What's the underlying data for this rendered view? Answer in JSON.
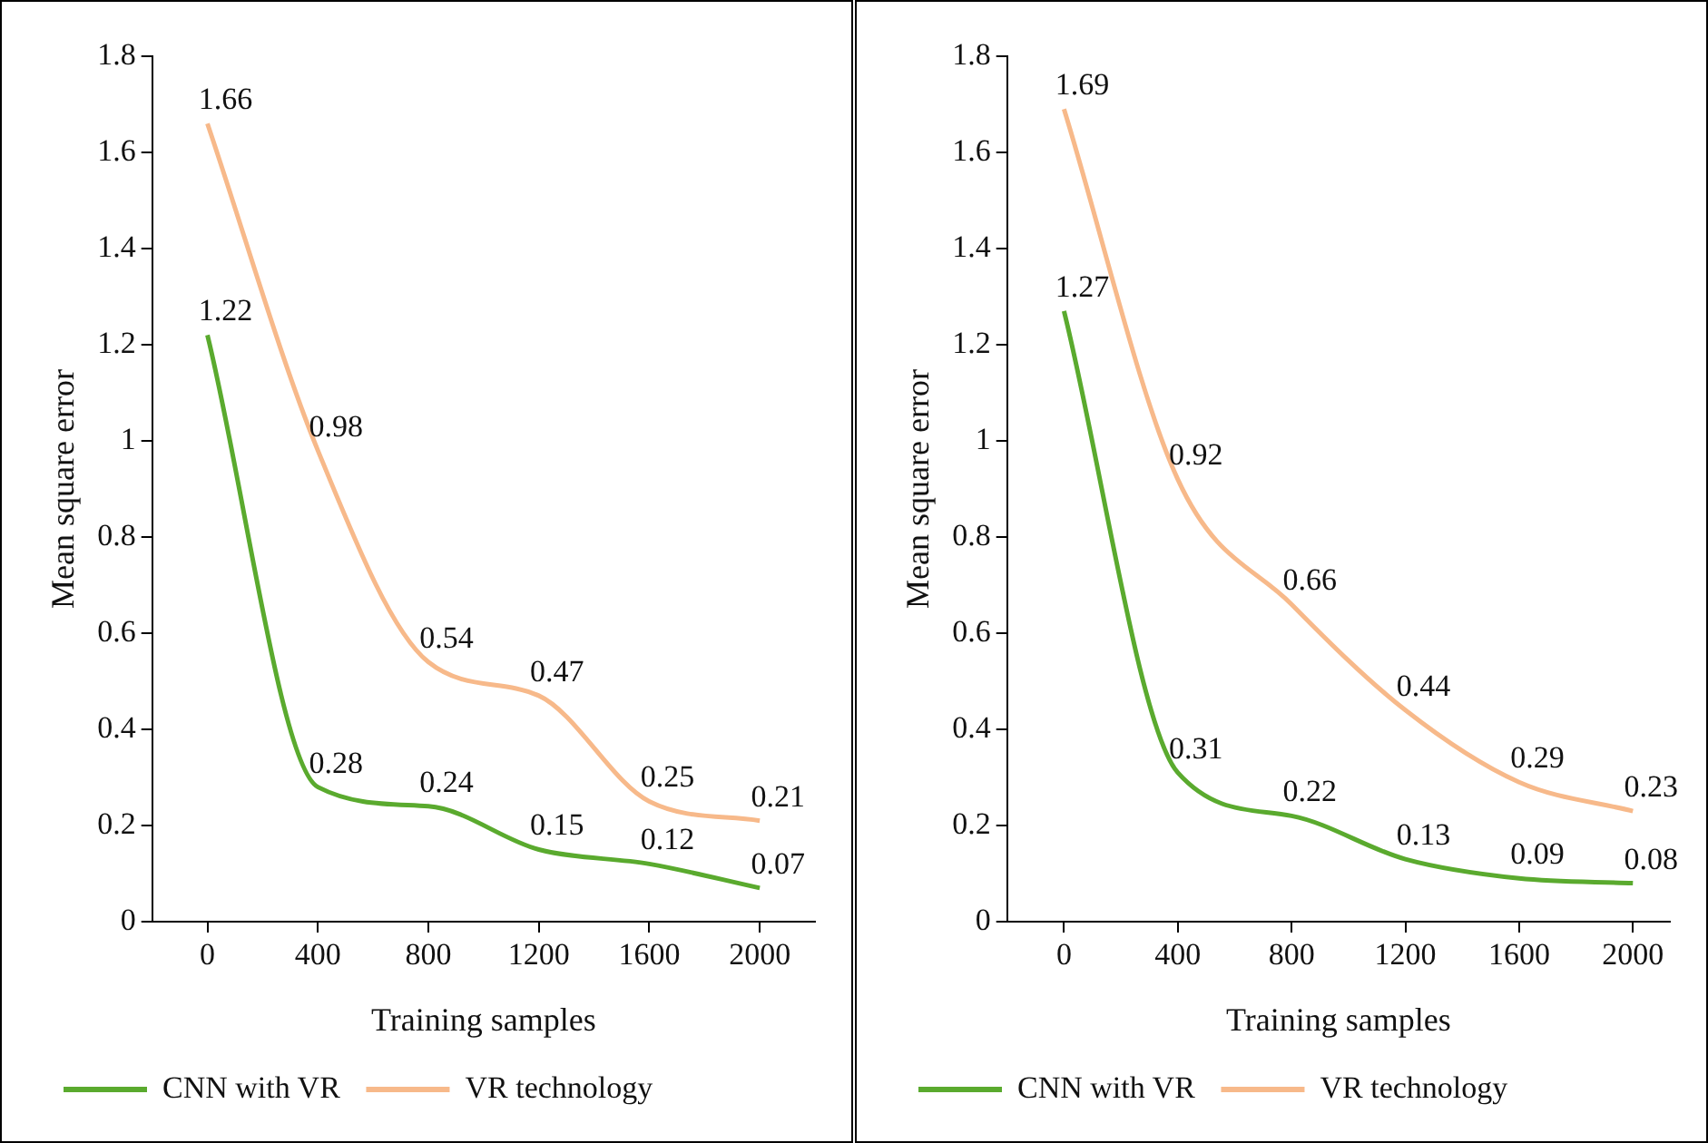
{
  "chart_data": [
    {
      "type": "line",
      "xlabel": "Training samples",
      "ylabel": "Mean square error",
      "x": [
        0,
        400,
        800,
        1200,
        1600,
        2000
      ],
      "xlim": [
        -200,
        2200
      ],
      "xticks": [
        0,
        400,
        800,
        1200,
        1600,
        2000
      ],
      "ylim": [
        0,
        1.8
      ],
      "yticks": [
        0,
        0.2,
        0.4,
        0.6,
        0.8,
        1,
        1.2,
        1.4,
        1.6,
        1.8
      ],
      "series": [
        {
          "name": "CNN with VR",
          "color": "#5aaa2e",
          "values": [
            1.22,
            0.28,
            0.24,
            0.15,
            0.12,
            0.07
          ]
        },
        {
          "name": "VR technology",
          "color": "#f7b98a",
          "values": [
            1.66,
            0.98,
            0.54,
            0.47,
            0.25,
            0.21
          ]
        }
      ],
      "data_labels": true,
      "legend": "bottom",
      "grid": false,
      "marker": "none",
      "line_style": "solid"
    },
    {
      "type": "line",
      "xlabel": "Training samples",
      "ylabel": "Mean square error",
      "x": [
        0,
        400,
        800,
        1200,
        1600,
        2000
      ],
      "xlim": [
        -200,
        2130
      ],
      "xticks": [
        0,
        400,
        800,
        1200,
        1600,
        2000
      ],
      "ylim": [
        0,
        1.8
      ],
      "yticks": [
        0,
        0.2,
        0.4,
        0.6,
        0.8,
        1,
        1.2,
        1.4,
        1.6,
        1.8
      ],
      "series": [
        {
          "name": "CNN with VR",
          "color": "#5aaa2e",
          "values": [
            1.27,
            0.31,
            0.22,
            0.13,
            0.09,
            0.08
          ]
        },
        {
          "name": "VR technology",
          "color": "#f7b98a",
          "values": [
            1.69,
            0.92,
            0.66,
            0.44,
            0.29,
            0.23
          ]
        }
      ],
      "data_labels": true,
      "legend": "bottom",
      "grid": false,
      "marker": "none",
      "line_style": "solid"
    }
  ]
}
